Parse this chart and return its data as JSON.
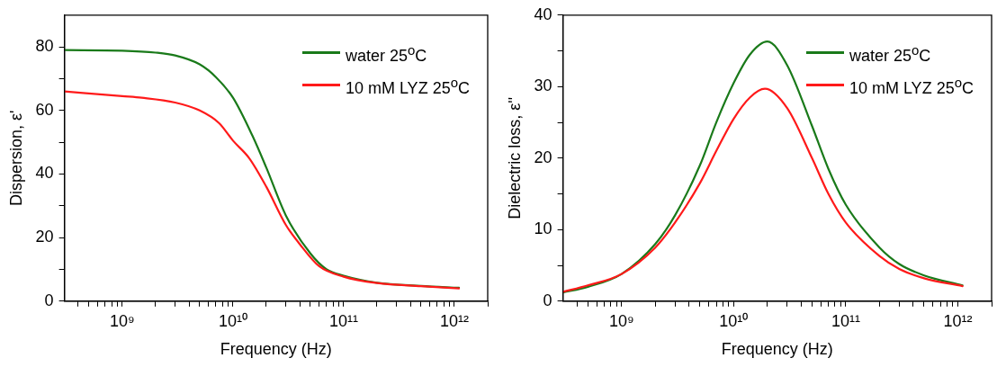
{
  "chart_data": [
    {
      "type": "line",
      "xlabel": "Frequency (Hz)",
      "ylabel": "Dispersion, ε'",
      "log": "x",
      "grid": false,
      "legend": "top right",
      "marker": "none",
      "line_style": "solid",
      "xlim": [
        300000000.0,
        2000000000000.0
      ],
      "ylim": [
        0,
        90
      ],
      "xticks": [
        {
          "value": 400000000.0,
          "label": null
        },
        {
          "value": 500000000.0,
          "label": null
        },
        {
          "value": 600000000.0,
          "label": null
        },
        {
          "value": 700000000.0,
          "label": null
        },
        {
          "value": 800000000.0,
          "label": null
        },
        {
          "value": 900000000.0,
          "label": null
        },
        {
          "value": 1000000000.0,
          "label": "10⁹"
        },
        {
          "value": 2000000000.0,
          "label": null
        },
        {
          "value": 3000000000.0,
          "label": null
        },
        {
          "value": 4000000000.0,
          "label": null
        },
        {
          "value": 5000000000.0,
          "label": null
        },
        {
          "value": 6000000000.0,
          "label": null
        },
        {
          "value": 7000000000.0,
          "label": null
        },
        {
          "value": 8000000000.0,
          "label": null
        },
        {
          "value": 9000000000.0,
          "label": null
        },
        {
          "value": 10000000000.0,
          "label": "10¹⁰"
        },
        {
          "value": 20000000000.0,
          "label": null
        },
        {
          "value": 30000000000.0,
          "label": null
        },
        {
          "value": 40000000000.0,
          "label": null
        },
        {
          "value": 50000000000.0,
          "label": null
        },
        {
          "value": 60000000000.0,
          "label": null
        },
        {
          "value": 70000000000.0,
          "label": null
        },
        {
          "value": 80000000000.0,
          "label": null
        },
        {
          "value": 90000000000.0,
          "label": null
        },
        {
          "value": 100000000000.0,
          "label": "10¹¹"
        },
        {
          "value": 200000000000.0,
          "label": null
        },
        {
          "value": 300000000000.0,
          "label": null
        },
        {
          "value": 400000000000.0,
          "label": null
        },
        {
          "value": 500000000000.0,
          "label": null
        },
        {
          "value": 600000000000.0,
          "label": null
        },
        {
          "value": 700000000000.0,
          "label": null
        },
        {
          "value": 800000000000.0,
          "label": null
        },
        {
          "value": 900000000000.0,
          "label": null
        },
        {
          "value": 1000000000000.0,
          "label": "10¹²"
        },
        {
          "value": 2000000000000.0,
          "label": null
        }
      ],
      "yticks": [
        0,
        {
          "value": 10,
          "label": null
        },
        20,
        {
          "value": 30,
          "label": null
        },
        40,
        {
          "value": 50,
          "label": null
        },
        60,
        {
          "value": 70,
          "label": null
        },
        80
      ],
      "series": [
        {
          "name": "water 25$^{o}$C",
          "color": "#1a7a1a",
          "x": [
            300000000.0,
            1000000000.0,
            2000000000.0,
            3000000000.0,
            5000000000.0,
            7000000000.0,
            10000000000.0,
            15000000000.0,
            20000000000.0,
            30000000000.0,
            50000000000.0,
            70000000000.0,
            100000000000.0,
            200000000000.0,
            500000000000.0,
            1100000000000.0
          ],
          "values": [
            79,
            78.8,
            78.2,
            77.3,
            74.5,
            70.5,
            64,
            52,
            42,
            27,
            15,
            10,
            8,
            5.8,
            4.8,
            4.2
          ]
        },
        {
          "name": "10 mM LYZ 25$^{o}$C",
          "color": "#ff1a1a",
          "x": [
            300000000.0,
            1000000000.0,
            1500000000.0,
            3000000000.0,
            5000000000.0,
            7500000000.0,
            10000000000.0,
            14000000000.0,
            20000000000.0,
            30000000000.0,
            40000000000.0,
            60000000000.0,
            100000000000.0,
            200000000000.0,
            500000000000.0,
            1100000000000.0
          ],
          "values": [
            66,
            64.5,
            64,
            62.5,
            60,
            56,
            50.5,
            45,
            36,
            24,
            18,
            11,
            7.7,
            5.7,
            4.7,
            4
          ]
        }
      ]
    },
    {
      "type": "line",
      "xlabel": "Frequency (Hz)",
      "ylabel": "Dielectric loss, ε''",
      "log": "x",
      "grid": false,
      "legend": "top right",
      "marker": "none",
      "line_style": "solid",
      "xlim": [
        300000000.0,
        2000000000000.0
      ],
      "ylim": [
        0,
        40
      ],
      "xticks": [
        {
          "value": 400000000.0,
          "label": null
        },
        {
          "value": 500000000.0,
          "label": null
        },
        {
          "value": 600000000.0,
          "label": null
        },
        {
          "value": 700000000.0,
          "label": null
        },
        {
          "value": 800000000.0,
          "label": null
        },
        {
          "value": 900000000.0,
          "label": null
        },
        {
          "value": 1000000000.0,
          "label": "10⁹"
        },
        {
          "value": 2000000000.0,
          "label": null
        },
        {
          "value": 3000000000.0,
          "label": null
        },
        {
          "value": 4000000000.0,
          "label": null
        },
        {
          "value": 5000000000.0,
          "label": null
        },
        {
          "value": 6000000000.0,
          "label": null
        },
        {
          "value": 7000000000.0,
          "label": null
        },
        {
          "value": 8000000000.0,
          "label": null
        },
        {
          "value": 9000000000.0,
          "label": null
        },
        {
          "value": 10000000000.0,
          "label": "10¹⁰"
        },
        {
          "value": 20000000000.0,
          "label": null
        },
        {
          "value": 30000000000.0,
          "label": null
        },
        {
          "value": 40000000000.0,
          "label": null
        },
        {
          "value": 50000000000.0,
          "label": null
        },
        {
          "value": 60000000000.0,
          "label": null
        },
        {
          "value": 70000000000.0,
          "label": null
        },
        {
          "value": 80000000000.0,
          "label": null
        },
        {
          "value": 90000000000.0,
          "label": null
        },
        {
          "value": 100000000000.0,
          "label": "10¹¹"
        },
        {
          "value": 200000000000.0,
          "label": null
        },
        {
          "value": 300000000000.0,
          "label": null
        },
        {
          "value": 400000000000.0,
          "label": null
        },
        {
          "value": 500000000000.0,
          "label": null
        },
        {
          "value": 600000000000.0,
          "label": null
        },
        {
          "value": 700000000000.0,
          "label": null
        },
        {
          "value": 800000000000.0,
          "label": null
        },
        {
          "value": 900000000000.0,
          "label": null
        },
        {
          "value": 1000000000000.0,
          "label": "10¹²"
        },
        {
          "value": 2000000000000.0,
          "label": null
        }
      ],
      "yticks": [
        0,
        {
          "value": 5,
          "label": null
        },
        10,
        {
          "value": 15,
          "label": null
        },
        20,
        {
          "value": 25,
          "label": null
        },
        30,
        {
          "value": 35,
          "label": null
        },
        40
      ],
      "series": [
        {
          "name": "water 25$^{o}$C",
          "color": "#1a7a1a",
          "x": [
            300000000.0,
            500000000.0,
            1000000000.0,
            2000000000.0,
            3000000000.0,
            5000000000.0,
            7000000000.0,
            10000000000.0,
            14000000000.0,
            20000000000.0,
            30000000000.0,
            50000000000.0,
            70000000000.0,
            100000000000.0,
            200000000000.0,
            300000000000.0,
            500000000000.0,
            1100000000000.0
          ],
          "values": [
            1.2,
            2,
            3.8,
            8,
            12,
            19,
            25,
            30.5,
            34.5,
            36.3,
            33,
            24.5,
            18.5,
            13.5,
            7.5,
            5.2,
            3.6,
            2.2
          ]
        },
        {
          "name": "10 mM LYZ 25$^{o}$C",
          "color": "#ff1a1a",
          "x": [
            300000000.0,
            500000000.0,
            1000000000.0,
            2000000000.0,
            3000000000.0,
            5000000000.0,
            7000000000.0,
            10000000000.0,
            14000000000.0,
            19000000000.0,
            30000000000.0,
            50000000000.0,
            70000000000.0,
            100000000000.0,
            200000000000.0,
            300000000000.0,
            500000000000.0,
            1100000000000.0
          ],
          "values": [
            1.3,
            2.2,
            3.8,
            7.5,
            11,
            16.5,
            21,
            25.5,
            28.5,
            29.7,
            27,
            20,
            15,
            11,
            6.3,
            4.5,
            3.2,
            2.1
          ]
        }
      ]
    }
  ]
}
